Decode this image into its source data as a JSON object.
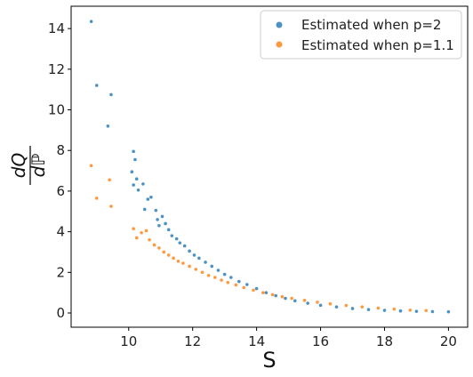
{
  "chart_data": {
    "type": "scatter",
    "xlabel": "S",
    "ylabel": {
      "numerator": "dQ",
      "denominator": "dℙ"
    },
    "xlim": [
      8.2,
      20.6
    ],
    "ylim": [
      -0.7,
      15.1
    ],
    "x_ticks": [
      10,
      12,
      14,
      16,
      18,
      20
    ],
    "y_ticks": [
      0,
      2,
      4,
      6,
      8,
      10,
      12,
      14
    ],
    "grid": false,
    "legend_position": "top-right",
    "series": [
      {
        "name": "Estimated when p=2",
        "color": "#1f77b4",
        "points": [
          [
            8.83,
            14.35
          ],
          [
            9.0,
            11.2
          ],
          [
            9.35,
            9.2
          ],
          [
            9.45,
            10.75
          ],
          [
            10.15,
            7.95
          ],
          [
            10.2,
            7.55
          ],
          [
            10.1,
            6.95
          ],
          [
            10.15,
            6.3
          ],
          [
            10.3,
            6.05
          ],
          [
            10.25,
            6.6
          ],
          [
            10.45,
            6.35
          ],
          [
            10.6,
            5.6
          ],
          [
            10.5,
            5.1
          ],
          [
            10.7,
            5.7
          ],
          [
            10.85,
            5.05
          ],
          [
            10.9,
            4.6
          ],
          [
            10.95,
            4.3
          ],
          [
            11.05,
            4.75
          ],
          [
            11.15,
            4.4
          ],
          [
            11.25,
            4.1
          ],
          [
            11.35,
            3.8
          ],
          [
            11.5,
            3.65
          ],
          [
            11.6,
            3.45
          ],
          [
            11.75,
            3.3
          ],
          [
            11.9,
            3.05
          ],
          [
            12.05,
            2.85
          ],
          [
            12.2,
            2.7
          ],
          [
            12.4,
            2.5
          ],
          [
            12.6,
            2.3
          ],
          [
            12.8,
            2.1
          ],
          [
            13.0,
            1.9
          ],
          [
            13.2,
            1.75
          ],
          [
            13.45,
            1.55
          ],
          [
            13.7,
            1.4
          ],
          [
            14.0,
            1.2
          ],
          [
            14.3,
            1.0
          ],
          [
            14.6,
            0.85
          ],
          [
            14.9,
            0.72
          ],
          [
            15.2,
            0.6
          ],
          [
            15.6,
            0.48
          ],
          [
            16.0,
            0.38
          ],
          [
            16.5,
            0.3
          ],
          [
            17.0,
            0.22
          ],
          [
            17.5,
            0.17
          ],
          [
            18.0,
            0.13
          ],
          [
            18.5,
            0.1
          ],
          [
            19.0,
            0.08
          ],
          [
            19.5,
            0.07
          ],
          [
            20.0,
            0.06
          ]
        ]
      },
      {
        "name": "Estimated when p=1.1",
        "color": "#ff7f0e",
        "points": [
          [
            8.83,
            7.25
          ],
          [
            9.0,
            5.65
          ],
          [
            9.4,
            6.55
          ],
          [
            9.45,
            5.25
          ],
          [
            10.15,
            4.15
          ],
          [
            10.25,
            3.7
          ],
          [
            10.4,
            3.95
          ],
          [
            10.55,
            4.05
          ],
          [
            10.65,
            3.6
          ],
          [
            10.8,
            3.35
          ],
          [
            10.95,
            3.2
          ],
          [
            11.1,
            3.0
          ],
          [
            11.25,
            2.85
          ],
          [
            11.4,
            2.7
          ],
          [
            11.55,
            2.55
          ],
          [
            11.7,
            2.45
          ],
          [
            11.9,
            2.3
          ],
          [
            12.1,
            2.15
          ],
          [
            12.3,
            2.0
          ],
          [
            12.5,
            1.85
          ],
          [
            12.7,
            1.75
          ],
          [
            12.9,
            1.62
          ],
          [
            13.1,
            1.5
          ],
          [
            13.35,
            1.38
          ],
          [
            13.6,
            1.25
          ],
          [
            13.9,
            1.12
          ],
          [
            14.2,
            1.0
          ],
          [
            14.5,
            0.9
          ],
          [
            14.8,
            0.8
          ],
          [
            15.1,
            0.72
          ],
          [
            15.5,
            0.62
          ],
          [
            15.9,
            0.53
          ],
          [
            16.3,
            0.45
          ],
          [
            16.8,
            0.37
          ],
          [
            17.3,
            0.3
          ],
          [
            17.8,
            0.24
          ],
          [
            18.3,
            0.19
          ],
          [
            18.8,
            0.14
          ],
          [
            19.3,
            0.12
          ]
        ]
      }
    ]
  }
}
